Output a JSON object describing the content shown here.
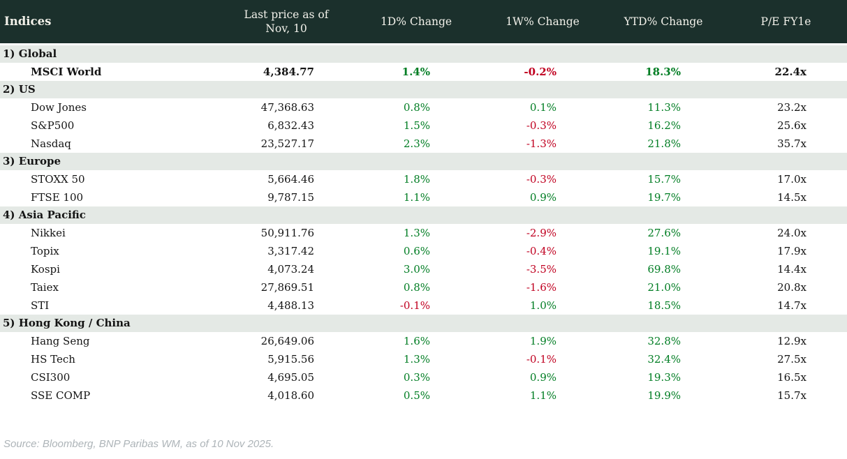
{
  "header": {
    "indices_label": "Indices",
    "columns": [
      "Last price as of Nov, 10",
      "1D% Change",
      "1W% Change",
      "YTD% Change",
      "P/E FY1e"
    ]
  },
  "chart_data": {
    "type": "table",
    "columns": [
      "Indices",
      "Last price as of Nov, 10",
      "1D% Change",
      "1W% Change",
      "YTD% Change",
      "P/E FY1e"
    ],
    "sections": [
      {
        "label": "1) Global",
        "rows": [
          {
            "name": "MSCI World",
            "last_price": "4,384.77",
            "chg_1d": "1.4%",
            "chg_1w": "-0.2%",
            "chg_ytd": "18.3%",
            "pe_fy1e": "22.4x",
            "bold": true
          }
        ]
      },
      {
        "label": "2) US",
        "rows": [
          {
            "name": "Dow Jones",
            "last_price": "47,368.63",
            "chg_1d": "0.8%",
            "chg_1w": "0.1%",
            "chg_ytd": "11.3%",
            "pe_fy1e": "23.2x"
          },
          {
            "name": "S&P500",
            "last_price": "6,832.43",
            "chg_1d": "1.5%",
            "chg_1w": "-0.3%",
            "chg_ytd": "16.2%",
            "pe_fy1e": "25.6x"
          },
          {
            "name": "Nasdaq",
            "last_price": "23,527.17",
            "chg_1d": "2.3%",
            "chg_1w": "-1.3%",
            "chg_ytd": "21.8%",
            "pe_fy1e": "35.7x"
          }
        ]
      },
      {
        "label": "3) Europe",
        "rows": [
          {
            "name": "STOXX 50",
            "last_price": "5,664.46",
            "chg_1d": "1.8%",
            "chg_1w": "-0.3%",
            "chg_ytd": "15.7%",
            "pe_fy1e": "17.0x"
          },
          {
            "name": "FTSE 100",
            "last_price": "9,787.15",
            "chg_1d": "1.1%",
            "chg_1w": "0.9%",
            "chg_ytd": "19.7%",
            "pe_fy1e": "14.5x"
          }
        ]
      },
      {
        "label": "4) Asia Pacific",
        "rows": [
          {
            "name": "Nikkei",
            "last_price": "50,911.76",
            "chg_1d": "1.3%",
            "chg_1w": "-2.9%",
            "chg_ytd": "27.6%",
            "pe_fy1e": "24.0x"
          },
          {
            "name": "Topix",
            "last_price": "3,317.42",
            "chg_1d": "0.6%",
            "chg_1w": "-0.4%",
            "chg_ytd": "19.1%",
            "pe_fy1e": "17.9x"
          },
          {
            "name": "Kospi",
            "last_price": "4,073.24",
            "chg_1d": "3.0%",
            "chg_1w": "-3.5%",
            "chg_ytd": "69.8%",
            "pe_fy1e": "14.4x"
          },
          {
            "name": "Taiex",
            "last_price": "27,869.51",
            "chg_1d": "0.8%",
            "chg_1w": "-1.6%",
            "chg_ytd": "21.0%",
            "pe_fy1e": "20.8x"
          },
          {
            "name": "STI",
            "last_price": "4,488.13",
            "chg_1d": "-0.1%",
            "chg_1w": "1.0%",
            "chg_ytd": "18.5%",
            "pe_fy1e": "14.7x"
          }
        ]
      },
      {
        "label": "5) Hong Kong / China",
        "rows": [
          {
            "name": "Hang Seng",
            "last_price": "26,649.06",
            "chg_1d": "1.6%",
            "chg_1w": "1.9%",
            "chg_ytd": "32.8%",
            "pe_fy1e": "12.9x"
          },
          {
            "name": "HS Tech",
            "last_price": "5,915.56",
            "chg_1d": "1.3%",
            "chg_1w": "-0.1%",
            "chg_ytd": "32.4%",
            "pe_fy1e": "27.5x"
          },
          {
            "name": "CSI300",
            "last_price": "4,695.05",
            "chg_1d": "0.3%",
            "chg_1w": "0.9%",
            "chg_ytd": "19.3%",
            "pe_fy1e": "16.5x"
          },
          {
            "name": "SSE COMP",
            "last_price": "4,018.60",
            "chg_1d": "0.5%",
            "chg_1w": "1.1%",
            "chg_ytd": "19.9%",
            "pe_fy1e": "15.7x"
          }
        ]
      }
    ]
  },
  "footer": {
    "source": "Source: Bloomberg, BNP Paribas WM, as of 10 Nov 2025."
  },
  "colors": {
    "header_bg": "#1b302c",
    "header_text": "#f2f1ea",
    "section_bg": "#e4e9e5",
    "positive": "#007d23",
    "negative": "#c00020",
    "text": "#141414",
    "source_text": "#adb4b8"
  }
}
